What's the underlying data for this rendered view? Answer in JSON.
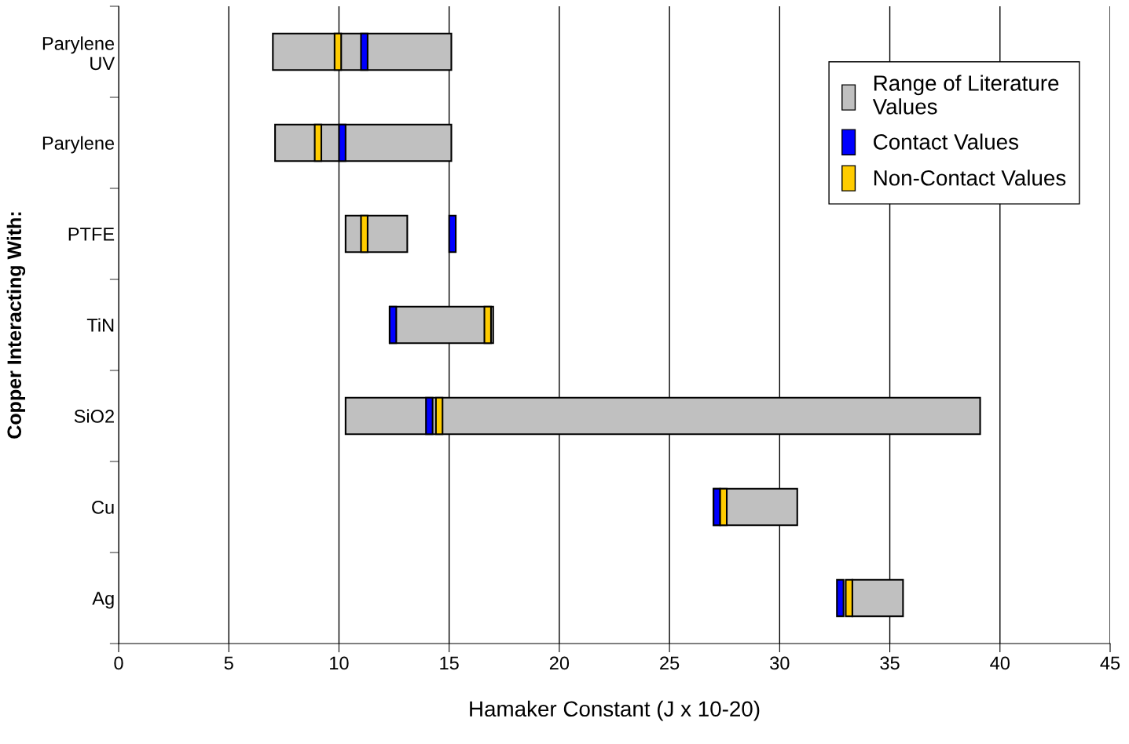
{
  "chart_data": {
    "type": "bar",
    "orientation": "horizontal",
    "xlabel": "Hamaker Constant (J x 10-20)",
    "ylabel": "Copper Interacting With:",
    "categories": [
      "Parylene\nUV",
      "Parylene",
      "PTFE",
      "TiN",
      "SiO2",
      "Cu",
      "Ag"
    ],
    "series": [
      {
        "name": "Range of Literature\nValues",
        "color": "#c0c0c0",
        "base": [
          7.0,
          7.1,
          10.3,
          12.3,
          10.3,
          27.0,
          33.3
        ],
        "values": [
          8.1,
          8.0,
          2.8,
          4.7,
          28.8,
          3.8,
          2.3
        ]
      },
      {
        "name": "Contact Values",
        "color": "#0000ff",
        "base": [
          11.0,
          10.0,
          15.0,
          12.3,
          13.95,
          27.0,
          32.6
        ],
        "values": [
          0.3,
          0.3,
          0.3,
          0.3,
          0.3,
          0.3,
          0.3
        ]
      },
      {
        "name": "Non-Contact Values",
        "color": "#ffcc00",
        "base": [
          9.8,
          8.9,
          11.0,
          16.6,
          14.4,
          27.3,
          33.0
        ],
        "values": [
          0.3,
          0.3,
          0.3,
          0.3,
          0.3,
          0.3,
          0.3
        ]
      }
    ],
    "xlim": [
      0,
      45
    ],
    "xticks": [
      0,
      5,
      10,
      15,
      20,
      25,
      30,
      35,
      40,
      45
    ],
    "grid": "x",
    "legend": "top right"
  }
}
